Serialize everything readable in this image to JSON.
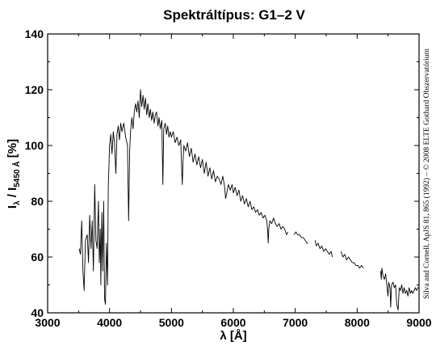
{
  "chart_data": {
    "type": "line",
    "title": "Spektráltípus: G1–2 V",
    "xlabel": "λ [Å]",
    "ylabel_main": "I",
    "ylabel_sub1": "λ",
    "ylabel_mid": " / I",
    "ylabel_sub2": "5450 Å",
    "ylabel_tail": " [%]",
    "side_note": "Silva and Cornell, ApJS 81, 865 (1992) – © 2008 ELTE Gothard Obszervatórium",
    "xlim": [
      3000,
      9000
    ],
    "ylim": [
      40,
      140
    ],
    "x_ticks": [
      3000,
      4000,
      5000,
      6000,
      7000,
      8000,
      9000
    ],
    "y_ticks": [
      40,
      60,
      80,
      100,
      120,
      140
    ],
    "x_tick_labels": [
      "3000",
      "4000",
      "5000",
      "6000",
      "7000",
      "8000",
      "9000"
    ],
    "y_tick_labels": [
      "40",
      "60",
      "80",
      "100",
      "120",
      "140"
    ],
    "grid": false,
    "series": [
      {
        "segments": [
          [
            [
              3510,
              63
            ],
            [
              3530,
              61
            ],
            [
              3550,
              73
            ],
            [
              3570,
              55
            ],
            [
              3590,
              48
            ],
            [
              3610,
              66
            ],
            [
              3640,
              68
            ],
            [
              3660,
              58
            ],
            [
              3680,
              75
            ],
            [
              3700,
              63
            ],
            [
              3720,
              73
            ],
            [
              3740,
              55
            ],
            [
              3760,
              86
            ],
            [
              3780,
              66
            ],
            [
              3800,
              63
            ],
            [
              3820,
              80
            ],
            [
              3835,
              58
            ],
            [
              3850,
              70
            ],
            [
              3860,
              50
            ],
            [
              3875,
              76
            ],
            [
              3890,
              55
            ],
            [
              3905,
              80
            ],
            [
              3920,
              45
            ],
            [
              3934,
              43
            ],
            [
              3950,
              65
            ],
            [
              3968,
              50
            ],
            [
              3980,
              85
            ],
            [
              4000,
              100
            ],
            [
              4020,
              104
            ],
            [
              4040,
              97
            ],
            [
              4060,
              105
            ],
            [
              4080,
              101
            ],
            [
              4102,
              90
            ],
            [
              4120,
              104
            ],
            [
              4140,
              107
            ],
            [
              4160,
              102
            ],
            [
              4180,
              108
            ],
            [
              4200,
              105
            ],
            [
              4230,
              108
            ],
            [
              4260,
              103
            ],
            [
              4290,
              100
            ],
            [
              4308,
              73
            ],
            [
              4325,
              98
            ],
            [
              4340,
              105
            ],
            [
              4360,
              110
            ],
            [
              4380,
              106
            ],
            [
              4400,
              112
            ],
            [
              4420,
              115
            ],
            [
              4440,
              112
            ],
            [
              4460,
              116
            ],
            [
              4480,
              110
            ],
            [
              4500,
              120
            ],
            [
              4520,
              114
            ],
            [
              4540,
              118
            ],
            [
              4560,
              113
            ],
            [
              4580,
              117
            ],
            [
              4600,
              111
            ],
            [
              4620,
              115
            ],
            [
              4640,
              110
            ],
            [
              4660,
              113
            ],
            [
              4680,
              109
            ],
            [
              4700,
              112
            ],
            [
              4720,
              108
            ],
            [
              4740,
              111
            ],
            [
              4760,
              112
            ],
            [
              4780,
              107
            ],
            [
              4800,
              110
            ],
            [
              4820,
              106
            ],
            [
              4845,
              109
            ],
            [
              4861,
              86
            ],
            [
              4875,
              106
            ],
            [
              4900,
              108
            ],
            [
              4920,
              104
            ],
            [
              4940,
              107
            ],
            [
              4960,
              103
            ],
            [
              4980,
              105
            ],
            [
              5000,
              103
            ],
            [
              5030,
              105
            ],
            [
              5060,
              101
            ],
            [
              5090,
              103
            ],
            [
              5120,
              100
            ],
            [
              5150,
              102
            ],
            [
              5167,
              91
            ],
            [
              5175,
              86
            ],
            [
              5185,
              93
            ],
            [
              5200,
              100
            ],
            [
              5230,
              98
            ],
            [
              5260,
              101
            ],
            [
              5290,
              96
            ],
            [
              5320,
              99
            ],
            [
              5350,
              94
            ],
            [
              5380,
              97
            ],
            [
              5410,
              93
            ],
            [
              5440,
              96
            ],
            [
              5470,
              92
            ],
            [
              5500,
              95
            ],
            [
              5530,
              90
            ],
            [
              5560,
              94
            ],
            [
              5590,
              89
            ],
            [
              5620,
              92
            ],
            [
              5650,
              88
            ],
            [
              5680,
              91
            ],
            [
              5710,
              87
            ],
            [
              5740,
              89
            ],
            [
              5770,
              88
            ],
            [
              5800,
              86
            ],
            [
              5830,
              89
            ],
            [
              5860,
              85
            ],
            [
              5875,
              81
            ],
            [
              5895,
              83
            ],
            [
              5920,
              86
            ],
            [
              5950,
              84
            ],
            [
              5980,
              86
            ],
            [
              6000,
              83
            ],
            [
              6030,
              85
            ],
            [
              6060,
              82
            ],
            [
              6090,
              84
            ],
            [
              6120,
              80
            ],
            [
              6150,
              82
            ],
            [
              6180,
              79
            ],
            [
              6210,
              81
            ],
            [
              6240,
              78
            ],
            [
              6270,
              80
            ],
            [
              6300,
              77
            ],
            [
              6330,
              78
            ],
            [
              6360,
              76
            ],
            [
              6390,
              77
            ],
            [
              6420,
              75
            ],
            [
              6450,
              76
            ],
            [
              6480,
              74
            ],
            [
              6510,
              75
            ],
            [
              6540,
              73
            ],
            [
              6553,
              70
            ],
            [
              6563,
              65
            ],
            [
              6573,
              70
            ],
            [
              6590,
              73
            ],
            [
              6620,
              72
            ],
            [
              6650,
              74
            ],
            [
              6680,
              72
            ],
            [
              6710,
              71
            ],
            [
              6740,
              72
            ],
            [
              6770,
              70
            ],
            [
              6800,
              71
            ],
            [
              6830,
              70
            ],
            [
              6860,
              68
            ],
            [
              6880,
              69
            ]
          ],
          [
            [
              6980,
              68
            ],
            [
              7010,
              69
            ],
            [
              7040,
              68
            ],
            [
              7070,
              68
            ],
            [
              7100,
              67
            ],
            [
              7130,
              67
            ],
            [
              7160,
              66
            ],
            [
              7190,
              65
            ],
            [
              7210,
              65
            ]
          ],
          [
            [
              7320,
              66
            ],
            [
              7340,
              64
            ],
            [
              7370,
              65
            ],
            [
              7400,
              63
            ],
            [
              7430,
              64
            ],
            [
              7460,
              62
            ],
            [
              7490,
              63
            ],
            [
              7520,
              62
            ],
            [
              7550,
              61
            ],
            [
              7580,
              62
            ],
            [
              7600,
              60
            ]
          ],
          [
            [
              7740,
              62
            ],
            [
              7770,
              60
            ],
            [
              7800,
              61
            ],
            [
              7830,
              59
            ],
            [
              7860,
              60
            ],
            [
              7890,
              59
            ],
            [
              7920,
              58
            ],
            [
              7950,
              58
            ],
            [
              7980,
              57
            ],
            [
              8010,
              57
            ],
            [
              8040,
              56
            ],
            [
              8070,
              57
            ],
            [
              8100,
              56
            ]
          ],
          [
            [
              8380,
              55
            ],
            [
              8390,
              52
            ],
            [
              8400,
              56
            ],
            [
              8420,
              53
            ],
            [
              8440,
              52
            ],
            [
              8460,
              54
            ],
            [
              8480,
              50
            ],
            [
              8498,
              46
            ],
            [
              8510,
              51
            ],
            [
              8530,
              49
            ],
            [
              8542,
              42
            ],
            [
              8555,
              50
            ],
            [
              8580,
              51
            ],
            [
              8600,
              49
            ],
            [
              8620,
              50
            ],
            [
              8640,
              43
            ],
            [
              8662,
              41
            ],
            [
              8680,
              49
            ],
            [
              8700,
              48
            ],
            [
              8720,
              50
            ],
            [
              8740,
              47
            ],
            [
              8760,
              49
            ],
            [
              8780,
              47
            ],
            [
              8800,
              48
            ],
            [
              8820,
              46
            ],
            [
              8840,
              49
            ],
            [
              8860,
              47
            ],
            [
              8880,
              48
            ],
            [
              8900,
              47
            ],
            [
              8920,
              48
            ],
            [
              8940,
              49
            ],
            [
              8960,
              48
            ],
            [
              8980,
              49
            ],
            [
              9000,
              49
            ]
          ]
        ]
      }
    ]
  }
}
